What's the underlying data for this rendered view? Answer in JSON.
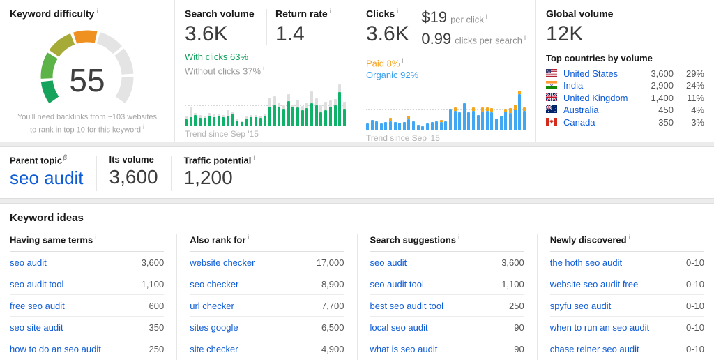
{
  "icons": {
    "info": "i",
    "beta": "β"
  },
  "colors": {
    "link": "#0d5bd7",
    "green": "#0fb269",
    "green_text": "#0a9f57",
    "gray_bar": "#dedede",
    "blue": "#41a7f3",
    "blue_text": "#38a1ef",
    "orange": "#f2a71f",
    "orange_text": "#f5a623"
  },
  "difficulty": {
    "title": "Keyword difficulty",
    "value": "55",
    "note1": "You'll need backlinks from ~103 websites",
    "note2": "to rank in top 10 for this keyword",
    "gauge_segments": [
      {
        "from": 0.0,
        "to": 0.115,
        "color": "#16a45c"
      },
      {
        "from": 0.13,
        "to": 0.265,
        "color": "#5cb347"
      },
      {
        "from": 0.28,
        "to": 0.415,
        "color": "#a6aa36"
      },
      {
        "from": 0.43,
        "to": 0.55,
        "color": "#ef9120"
      },
      {
        "from": 0.565,
        "to": 0.695,
        "color": "#e4e4e4"
      },
      {
        "from": 0.71,
        "to": 0.845,
        "color": "#e4e4e4"
      },
      {
        "from": 0.86,
        "to": 1.0,
        "color": "#e4e4e4"
      }
    ]
  },
  "search_volume": {
    "title": "Search volume",
    "value": "3.6K",
    "return_rate_label": "Return rate",
    "return_rate_value": "1.4",
    "with_clicks": "With clicks 63%",
    "without_clicks": "Without clicks 37%",
    "trend_label": "Trend since Sep '15",
    "bars": [
      [
        14,
        9
      ],
      [
        20,
        22
      ],
      [
        24,
        5
      ],
      [
        17,
        7
      ],
      [
        17,
        4
      ],
      [
        23,
        6
      ],
      [
        19,
        7
      ],
      [
        22,
        6
      ],
      [
        20,
        5
      ],
      [
        23,
        14
      ],
      [
        27,
        6
      ],
      [
        11,
        4
      ],
      [
        8,
        4
      ],
      [
        16,
        5
      ],
      [
        19,
        6
      ],
      [
        19,
        5
      ],
      [
        18,
        5
      ],
      [
        22,
        6
      ],
      [
        44,
        21
      ],
      [
        47,
        20
      ],
      [
        44,
        7
      ],
      [
        39,
        8
      ],
      [
        56,
        17
      ],
      [
        43,
        6
      ],
      [
        42,
        17
      ],
      [
        35,
        10
      ],
      [
        40,
        13
      ],
      [
        52,
        27
      ],
      [
        46,
        17
      ],
      [
        30,
        17
      ],
      [
        36,
        19
      ],
      [
        44,
        14
      ],
      [
        46,
        16
      ],
      [
        78,
        17
      ],
      [
        38,
        17
      ]
    ]
  },
  "clicks": {
    "title": "Clicks",
    "value": "3.6K",
    "cpc_value": "$19",
    "cpc_label": "per click",
    "cps_value": "0.99",
    "cps_label": "clicks per search",
    "paid": "Paid 8%",
    "organic": "Organic 92%",
    "trend_label": "Trend since Sep '15",
    "bars": [
      [
        14,
        0
      ],
      [
        22,
        0
      ],
      [
        20,
        0
      ],
      [
        15,
        0
      ],
      [
        18,
        0
      ],
      [
        20,
        8
      ],
      [
        18,
        0
      ],
      [
        16,
        0
      ],
      [
        18,
        0
      ],
      [
        24,
        8
      ],
      [
        20,
        0
      ],
      [
        12,
        0
      ],
      [
        8,
        0
      ],
      [
        14,
        0
      ],
      [
        17,
        0
      ],
      [
        19,
        0
      ],
      [
        18,
        4
      ],
      [
        20,
        0
      ],
      [
        48,
        0
      ],
      [
        44,
        8
      ],
      [
        40,
        0
      ],
      [
        62,
        0
      ],
      [
        40,
        0
      ],
      [
        44,
        8
      ],
      [
        34,
        0
      ],
      [
        42,
        10
      ],
      [
        44,
        8
      ],
      [
        40,
        10
      ],
      [
        26,
        0
      ],
      [
        32,
        0
      ],
      [
        42,
        6
      ],
      [
        38,
        12
      ],
      [
        46,
        12
      ],
      [
        82,
        8
      ],
      [
        44,
        8
      ]
    ]
  },
  "global": {
    "title": "Global volume",
    "value": "12K",
    "countries_title": "Top countries by volume",
    "countries": [
      {
        "flag": "us",
        "name": "United States",
        "volume": "3,600",
        "share": "29%"
      },
      {
        "flag": "in",
        "name": "India",
        "volume": "2,900",
        "share": "24%"
      },
      {
        "flag": "gb",
        "name": "United Kingdom",
        "volume": "1,400",
        "share": "11%"
      },
      {
        "flag": "au",
        "name": "Australia",
        "volume": "450",
        "share": "4%"
      },
      {
        "flag": "ca",
        "name": "Canada",
        "volume": "350",
        "share": "3%"
      }
    ]
  },
  "parent": {
    "label": "Parent topic",
    "value": "seo audit",
    "volume_label": "Its volume",
    "volume_value": "3,600",
    "traffic_label": "Traffic potential",
    "traffic_value": "1,200"
  },
  "ideas": {
    "title": "Keyword ideas",
    "columns": [
      {
        "header": "Having same terms",
        "rows": [
          [
            "seo audit",
            "3,600"
          ],
          [
            "seo audit tool",
            "1,100"
          ],
          [
            "free seo audit",
            "600"
          ],
          [
            "seo site audit",
            "350"
          ],
          [
            "how to do an seo audit",
            "250"
          ]
        ]
      },
      {
        "header": "Also rank for",
        "rows": [
          [
            "website checker",
            "17,000"
          ],
          [
            "seo checker",
            "8,900"
          ],
          [
            "url checker",
            "7,700"
          ],
          [
            "sites google",
            "6,500"
          ],
          [
            "site checker",
            "4,900"
          ]
        ]
      },
      {
        "header": "Search suggestions",
        "rows": [
          [
            "seo audit",
            "3,600"
          ],
          [
            "seo audit tool",
            "1,100"
          ],
          [
            "best seo audit tool",
            "250"
          ],
          [
            "local seo audit",
            "90"
          ],
          [
            "what is seo audit",
            "90"
          ]
        ]
      },
      {
        "header": "Newly discovered",
        "rows": [
          [
            "the hoth seo audit",
            "0-10"
          ],
          [
            "website seo audit free",
            "0-10"
          ],
          [
            "spyfu seo audit",
            "0-10"
          ],
          [
            "when to run an seo audit",
            "0-10"
          ],
          [
            "chase reiner seo audit",
            "0-10"
          ]
        ]
      }
    ]
  }
}
